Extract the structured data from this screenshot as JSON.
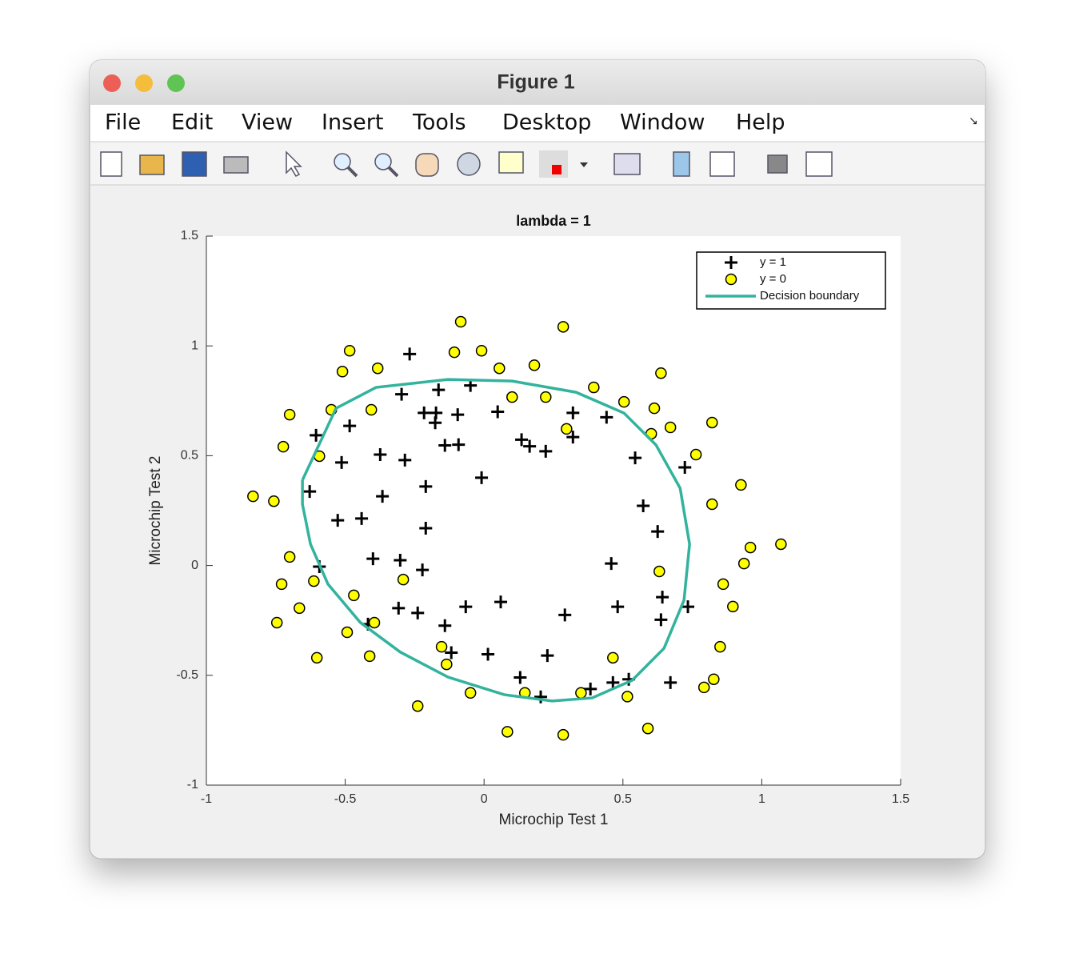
{
  "window": {
    "title": "Figure 1",
    "menu": [
      "File",
      "Edit",
      "View",
      "Insert",
      "Tools",
      "Desktop",
      "Window",
      "Help"
    ]
  },
  "chart_data": {
    "type": "scatter",
    "title": "lambda = 1",
    "x_label": "Microchip Test 1",
    "y_label": "Microchip Test 2",
    "xlim": [
      -1,
      1.5
    ],
    "ylim": [
      -1,
      1.5
    ],
    "xticks": [
      -1,
      -0.5,
      0,
      0.5,
      1,
      1.5
    ],
    "yticks": [
      -1,
      -0.5,
      0,
      0.5,
      1,
      1.5
    ],
    "grid": false,
    "legend": "upper right",
    "series": [
      {
        "name": "y = 1",
        "marker": "plus",
        "color": "#000000",
        "x": [
          -0.268,
          -0.297,
          -0.164,
          -0.049,
          -0.216,
          -0.173,
          -0.176,
          -0.095,
          0.049,
          0.32,
          0.32,
          0.441,
          0.135,
          0.164,
          0.222,
          -0.141,
          -0.092,
          -0.484,
          -0.605,
          -0.513,
          -0.374,
          -0.285,
          -0.21,
          -0.009,
          -0.628,
          -0.366,
          -0.527,
          -0.441,
          -0.21,
          0.544,
          0.723,
          0.573,
          0.625,
          -0.593,
          -0.4,
          -0.302,
          -0.222,
          0.458,
          0.642,
          0.734,
          0.637,
          0.481,
          0.291,
          0.06,
          -0.066,
          -0.308,
          -0.239,
          -0.141,
          -0.418,
          -0.118,
          0.014,
          0.228,
          0.13,
          0.204,
          0.383,
          0.464,
          0.521,
          0.671
        ],
        "y": [
          0.963,
          0.78,
          0.8,
          0.82,
          0.695,
          0.695,
          0.65,
          0.687,
          0.7,
          0.695,
          0.585,
          0.675,
          0.573,
          0.543,
          0.52,
          0.547,
          0.55,
          0.636,
          0.593,
          0.469,
          0.505,
          0.48,
          0.36,
          0.4,
          0.337,
          0.315,
          0.206,
          0.214,
          0.17,
          0.49,
          0.447,
          0.272,
          0.155,
          -0.005,
          0.031,
          0.024,
          -0.02,
          0.009,
          -0.144,
          -0.188,
          -0.247,
          -0.188,
          -0.225,
          -0.166,
          -0.188,
          -0.194,
          -0.216,
          -0.274,
          -0.267,
          -0.397,
          -0.404,
          -0.41,
          -0.51,
          -0.598,
          -0.562,
          -0.533,
          -0.518,
          -0.533
        ]
      },
      {
        "name": "y = 0",
        "marker": "circle",
        "color": "#ffff00",
        "x": [
          -0.084,
          0.285,
          -0.484,
          -0.107,
          -0.009,
          -0.51,
          -0.383,
          0.055,
          0.181,
          0.637,
          0.395,
          0.101,
          0.222,
          0.504,
          0.613,
          0.671,
          0.821,
          0.297,
          0.602,
          0.763,
          -0.55,
          -0.406,
          -0.7,
          -0.723,
          -0.593,
          -0.832,
          -0.757,
          0.925,
          0.821,
          0.959,
          1.069,
          0.936,
          -0.7,
          0.631,
          -0.613,
          -0.291,
          -0.729,
          -0.469,
          0.861,
          -0.665,
          0.896,
          -0.746,
          -0.395,
          -0.493,
          -0.153,
          0.85,
          -0.602,
          -0.412,
          -0.135,
          0.464,
          0.827,
          0.792,
          -0.049,
          0.147,
          0.349,
          0.516,
          -0.239,
          0.084,
          0.285,
          0.59
        ],
        "y": [
          1.11,
          1.087,
          0.978,
          0.971,
          0.978,
          0.883,
          0.898,
          0.898,
          0.912,
          0.876,
          0.811,
          0.767,
          0.767,
          0.745,
          0.716,
          0.629,
          0.651,
          0.622,
          0.6,
          0.505,
          0.709,
          0.709,
          0.687,
          0.541,
          0.498,
          0.315,
          0.293,
          0.367,
          0.279,
          0.082,
          0.097,
          0.009,
          0.039,
          -0.027,
          -0.071,
          -0.064,
          -0.085,
          -0.136,
          -0.085,
          -0.194,
          -0.187,
          -0.26,
          -0.26,
          -0.304,
          -0.37,
          -0.37,
          -0.42,
          -0.413,
          -0.45,
          -0.42,
          -0.518,
          -0.555,
          -0.58,
          -0.58,
          -0.58,
          -0.597,
          -0.64,
          -0.757,
          -0.771,
          -0.742
        ]
      },
      {
        "name": "Decision boundary",
        "marker": "line",
        "color": "#33b39d",
        "x": [
          -0.654,
          -0.533,
          -0.389,
          -0.13,
          0.101,
          0.331,
          0.504,
          0.619,
          0.706,
          0.74,
          0.72,
          0.648,
          0.533,
          0.389,
          0.245,
          0.072,
          -0.13,
          -0.302,
          -0.446,
          -0.562,
          -0.625,
          -0.654,
          -0.654
        ],
        "y": [
          0.389,
          0.716,
          0.811,
          0.847,
          0.84,
          0.789,
          0.694,
          0.549,
          0.352,
          0.097,
          -0.158,
          -0.377,
          -0.523,
          -0.603,
          -0.617,
          -0.588,
          -0.508,
          -0.394,
          -0.259,
          -0.085,
          0.097,
          0.279,
          0.389
        ]
      }
    ]
  }
}
